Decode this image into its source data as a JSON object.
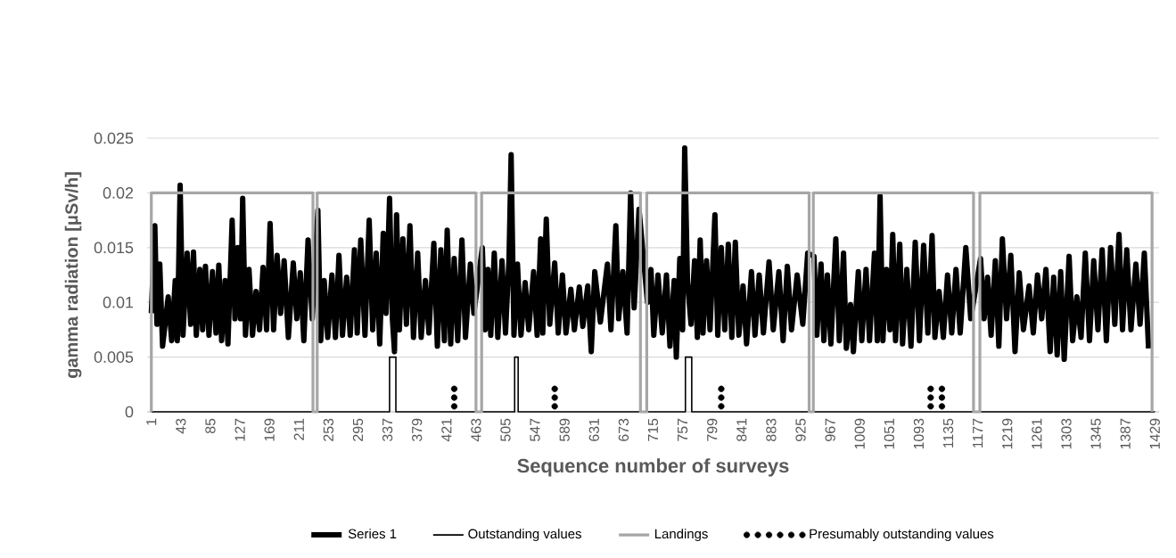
{
  "chart_data": {
    "type": "line",
    "xlabel": "Sequence number of surveys",
    "ylabel": "gamma radiation [μSv/h]",
    "xlim": [
      -5,
      1435
    ],
    "ylim": [
      0,
      0.025
    ],
    "xticks": [
      1,
      43,
      85,
      127,
      169,
      211,
      253,
      295,
      337,
      379,
      421,
      463,
      505,
      547,
      589,
      631,
      673,
      715,
      757,
      799,
      841,
      883,
      925,
      967,
      1009,
      1051,
      1093,
      1135,
      1177,
      1219,
      1261,
      1303,
      1345,
      1387,
      1429
    ],
    "yticks": [
      0,
      0.005,
      0.01,
      0.015,
      0.02,
      0.025
    ],
    "grid": "y",
    "legend": "bottom",
    "series": [
      {
        "name": "Series 1",
        "color": "#000000",
        "line_style": "solid",
        "x": [
          1,
          6,
          9,
          13,
          17,
          25,
          30,
          35,
          38,
          42,
          46,
          52,
          57,
          61,
          65,
          70,
          74,
          78,
          83,
          88,
          93,
          97,
          101,
          106,
          110,
          116,
          120,
          124,
          128,
          131,
          135,
          140,
          145,
          150,
          155,
          160,
          165,
          170,
          175,
          180,
          185,
          190,
          196,
          203,
          208,
          213,
          218,
          224,
          230,
          238,
          242,
          247,
          252,
          258,
          263,
          268,
          273,
          279,
          284,
          290,
          294,
          299,
          305,
          311,
          316,
          321,
          326,
          331,
          335,
          340,
          344,
          347,
          350,
          354,
          359,
          364,
          369,
          374,
          380,
          385,
          391,
          396,
          403,
          408,
          413,
          418,
          422,
          427,
          432,
          437,
          443,
          448,
          455,
          460,
          472,
          476,
          480,
          484,
          489,
          494,
          500,
          505,
          510,
          513,
          517,
          522,
          527,
          533,
          538,
          545,
          550,
          555,
          558,
          563,
          568,
          575,
          580,
          586,
          591,
          598,
          603,
          610,
          615,
          622,
          627,
          632,
          640,
          650,
          655,
          662,
          666,
          672,
          678,
          683,
          688,
          695,
          707,
          712,
          716,
          722,
          728,
          734,
          739,
          745,
          748,
          753,
          757,
          760,
          764,
          769,
          774,
          778,
          782,
          786,
          791,
          796,
          803,
          807,
          812,
          817,
          822,
          827,
          832,
          837,
          843,
          848,
          855,
          860,
          866,
          872,
          880,
          886,
          894,
          900,
          906,
          912,
          920,
          928,
          935,
          944,
          948,
          954,
          958,
          963,
          968,
          975,
          980,
          986,
          990,
          996,
          1000,
          1007,
          1012,
          1018,
          1023,
          1030,
          1034,
          1038,
          1042,
          1047,
          1052,
          1056,
          1060,
          1066,
          1070,
          1076,
          1082,
          1088,
          1094,
          1100,
          1106,
          1112,
          1116,
          1122,
          1128,
          1134,
          1140,
          1146,
          1152,
          1160,
          1167,
          1181,
          1186,
          1191,
          1196,
          1202,
          1207,
          1212,
          1218,
          1224,
          1230,
          1236,
          1242,
          1250,
          1256,
          1262,
          1268,
          1274,
          1280,
          1285,
          1290,
          1295,
          1300,
          1307,
          1312,
          1318,
          1324,
          1330,
          1336,
          1342,
          1348,
          1354,
          1360,
          1366,
          1372,
          1378,
          1383,
          1389,
          1395,
          1402,
          1408,
          1414,
          1420
        ],
        "values": [
          0.009,
          0.017,
          0.008,
          0.0135,
          0.006,
          0.0105,
          0.0065,
          0.012,
          0.0065,
          0.0207,
          0.007,
          0.0145,
          0.008,
          0.0146,
          0.007,
          0.013,
          0.0075,
          0.0133,
          0.007,
          0.0128,
          0.0072,
          0.0134,
          0.0065,
          0.012,
          0.0062,
          0.0175,
          0.0085,
          0.015,
          0.0085,
          0.0195,
          0.007,
          0.013,
          0.007,
          0.011,
          0.0075,
          0.0132,
          0.0075,
          0.0172,
          0.0075,
          0.0143,
          0.009,
          0.0138,
          0.0068,
          0.0136,
          0.0085,
          0.0127,
          0.0065,
          0.0157,
          0.0085,
          0.0184,
          0.0065,
          0.012,
          0.0068,
          0.0125,
          0.0068,
          0.0143,
          0.007,
          0.0123,
          0.007,
          0.0148,
          0.0072,
          0.0157,
          0.007,
          0.0175,
          0.0075,
          0.0145,
          0.0062,
          0.0163,
          0.009,
          0.0195,
          0.0085,
          0.0055,
          0.018,
          0.0075,
          0.0158,
          0.008,
          0.017,
          0.0068,
          0.0145,
          0.0068,
          0.012,
          0.0072,
          0.0154,
          0.006,
          0.0148,
          0.0065,
          0.0166,
          0.0062,
          0.014,
          0.0065,
          0.0157,
          0.0068,
          0.0135,
          0.009,
          0.015,
          0.0075,
          0.013,
          0.007,
          0.0145,
          0.0068,
          0.0138,
          0.0072,
          0.014,
          0.0235,
          0.007,
          0.0135,
          0.007,
          0.0118,
          0.0075,
          0.0128,
          0.007,
          0.0158,
          0.0072,
          0.0176,
          0.008,
          0.0136,
          0.0072,
          0.0125,
          0.0072,
          0.0112,
          0.0075,
          0.0114,
          0.0078,
          0.0115,
          0.0055,
          0.0128,
          0.0082,
          0.0135,
          0.0075,
          0.017,
          0.0085,
          0.0128,
          0.0072,
          0.02,
          0.0095,
          0.0185,
          0.01,
          0.013,
          0.007,
          0.0125,
          0.0072,
          0.0125,
          0.006,
          0.012,
          0.005,
          0.014,
          0.0075,
          0.0241,
          0.0118,
          0.008,
          0.0138,
          0.0068,
          0.0157,
          0.0072,
          0.0138,
          0.0075,
          0.018,
          0.007,
          0.015,
          0.0075,
          0.0153,
          0.0068,
          0.0155,
          0.007,
          0.0115,
          0.0062,
          0.0128,
          0.007,
          0.0125,
          0.0072,
          0.0137,
          0.0075,
          0.0128,
          0.0065,
          0.0133,
          0.0075,
          0.0125,
          0.008,
          0.0145,
          0.0142,
          0.007,
          0.0135,
          0.0065,
          0.0125,
          0.0062,
          0.0158,
          0.0065,
          0.0145,
          0.0058,
          0.0098,
          0.0055,
          0.0128,
          0.0065,
          0.013,
          0.0065,
          0.0145,
          0.0065,
          0.0197,
          0.0065,
          0.013,
          0.0075,
          0.0162,
          0.0065,
          0.0153,
          0.0062,
          0.013,
          0.006,
          0.0155,
          0.0065,
          0.0152,
          0.0072,
          0.0161,
          0.0068,
          0.011,
          0.0068,
          0.0125,
          0.0072,
          0.013,
          0.0072,
          0.015,
          0.0085,
          0.014,
          0.0085,
          0.0123,
          0.007,
          0.0138,
          0.006,
          0.0158,
          0.0085,
          0.0143,
          0.0055,
          0.0127,
          0.0075,
          0.0115,
          0.0072,
          0.0125,
          0.0085,
          0.013,
          0.0055,
          0.0123,
          0.0052,
          0.0128,
          0.0048,
          0.0142,
          0.0065,
          0.0105,
          0.0068,
          0.0145,
          0.0065,
          0.0138,
          0.0075,
          0.0148,
          0.0065,
          0.015,
          0.008,
          0.0162,
          0.0075,
          0.0148,
          0.0075,
          0.0135,
          0.008,
          0.0145,
          0.0058
        ]
      },
      {
        "name": "Outstanding values",
        "color": "#000000",
        "line_style": "solid",
        "x": [
          1,
          340,
          340,
          349,
          349,
          518,
          518,
          523,
          523,
          761,
          761,
          770,
          770,
          1429
        ],
        "values": [
          0,
          0,
          0.005,
          0.005,
          0,
          0,
          0.005,
          0.005,
          0,
          0,
          0.005,
          0.005,
          0,
          0
        ]
      },
      {
        "name": "Landings",
        "color": "#a6a6a6",
        "line_style": "solid",
        "x": [
          1,
          1,
          231,
          231,
          237,
          237,
          463,
          463,
          471,
          471,
          697,
          697,
          706,
          706,
          937,
          937,
          943,
          943,
          1171,
          1171,
          1180,
          1180,
          1425,
          1425
        ],
        "values": [
          0,
          0.02,
          0.02,
          0,
          0,
          0.02,
          0.02,
          0,
          0,
          0.02,
          0.02,
          0,
          0,
          0.02,
          0.02,
          0,
          0,
          0.02,
          0.02,
          0,
          0,
          0.02,
          0.02,
          0
        ]
      },
      {
        "name": "Presumably outstanding values",
        "color": "#000000",
        "type": "scatter",
        "marker": "circle",
        "x": [
          432,
          432,
          432,
          575,
          575,
          575,
          812,
          812,
          812,
          1110,
          1110,
          1110,
          1126,
          1126,
          1126
        ],
        "values": [
          0.0005,
          0.0013,
          0.0021,
          0.0005,
          0.0013,
          0.0021,
          0.0005,
          0.0013,
          0.0021,
          0.0005,
          0.0013,
          0.0021,
          0.0005,
          0.0013,
          0.0021
        ]
      }
    ]
  }
}
